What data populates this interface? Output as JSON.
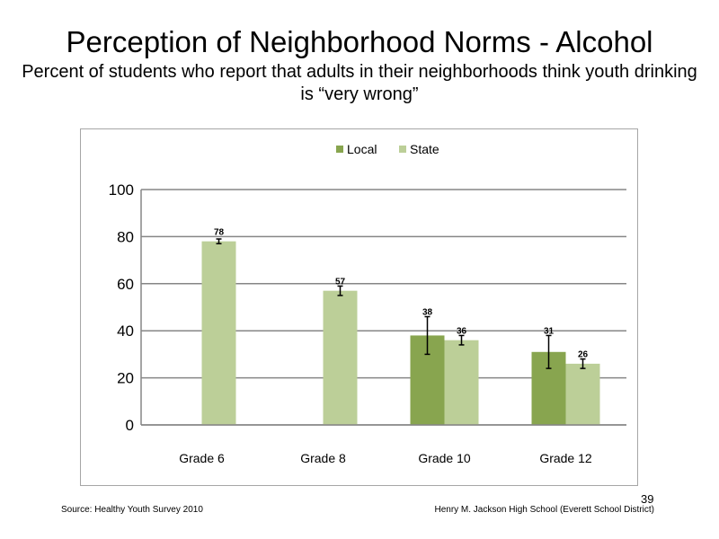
{
  "slide": {
    "title": "Perception  of Neighborhood  Norms - Alcohol",
    "subtitle": "Percent of students who report that adults in their neighborhoods think youth drinking  is “very wrong”",
    "source": "Source: Healthy Youth Survey 2010",
    "credit": "Henry M. Jackson High School (Everett School District)",
    "page_number": "39"
  },
  "chart_data": {
    "type": "bar",
    "categories": [
      "Grade 6",
      "Grade 8",
      "Grade 10",
      "Grade 12"
    ],
    "series": [
      {
        "name": "Local",
        "color": "#88a54f",
        "values": [
          null,
          null,
          38,
          31
        ],
        "labels": [
          "",
          "",
          "38",
          "31"
        ],
        "error": [
          null,
          null,
          [
            30,
            46
          ],
          [
            24,
            38
          ]
        ]
      },
      {
        "name": "State",
        "color": "#bccf98",
        "values": [
          78,
          57,
          36,
          26
        ],
        "labels": [
          "78",
          "57",
          "36",
          "26"
        ],
        "error": [
          [
            77,
            79
          ],
          [
            55,
            59
          ],
          [
            34,
            38
          ],
          [
            24,
            28
          ]
        ]
      }
    ],
    "ylim": [
      0,
      100
    ],
    "yticks": [
      "0",
      "20",
      "40",
      "60",
      "80",
      "100"
    ],
    "grid": true,
    "legend_position": "top-center",
    "title": "",
    "xlabel": "",
    "ylabel": ""
  }
}
